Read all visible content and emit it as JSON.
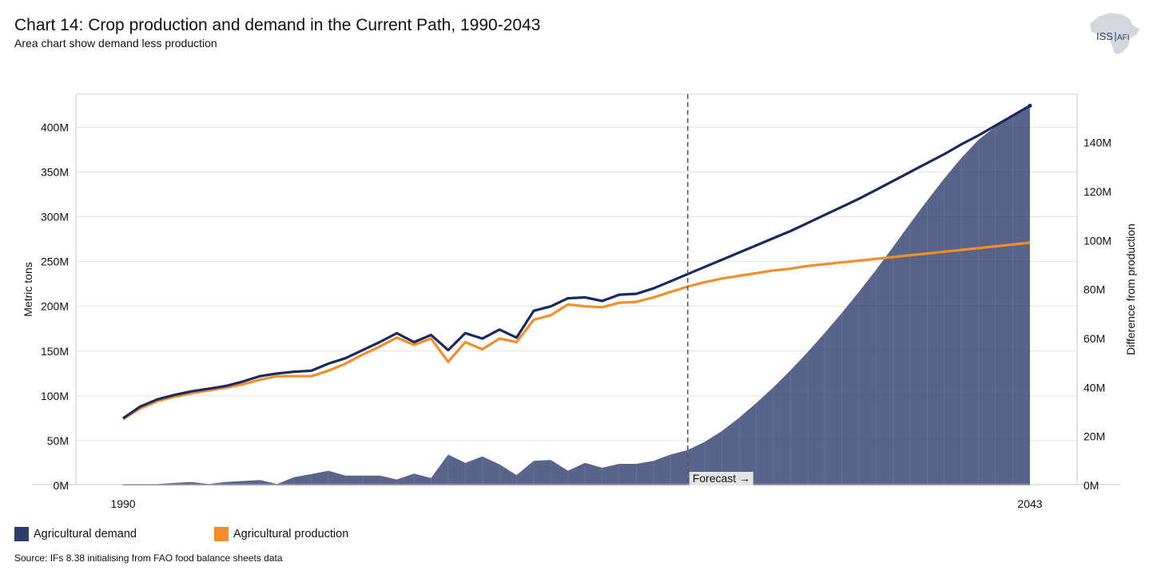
{
  "title": "Chart 14: Crop production and demand in the Current Path, 1990-2043",
  "subtitle": "Area chart show demand less production",
  "logo": {
    "text_main": "ISS",
    "text_sub": "AFI"
  },
  "legend": [
    {
      "label": "Agricultural demand",
      "color": "#2e3d6b"
    },
    {
      "label": "Agricultural production",
      "color": "#f28e2b"
    }
  ],
  "source": "Source: IFs 8.38 initialising from FAO food balance sheets data",
  "forecast_label": "Forecast →",
  "chart_data": {
    "type": "line+area",
    "title": "Chart 14: Crop production and demand in the Current Path, 1990-2043",
    "ylabel": "Metric tons",
    "y2label": "Difference from production",
    "ylim": [
      0,
      440000000
    ],
    "y2lim": [
      0,
      160000000
    ],
    "yticks": [
      0,
      50000000,
      100000000,
      150000000,
      200000000,
      250000000,
      300000000,
      350000000,
      400000000
    ],
    "ytick_labels": [
      "0M",
      "50M",
      "100M",
      "150M",
      "200M",
      "250M",
      "300M",
      "350M",
      "400M"
    ],
    "y2ticks": [
      0,
      20000000,
      40000000,
      60000000,
      80000000,
      100000000,
      120000000,
      140000000
    ],
    "y2tick_labels": [
      "0M",
      "20M",
      "40M",
      "60M",
      "80M",
      "100M",
      "120M",
      "140M"
    ],
    "xlim": [
      1990,
      2043
    ],
    "xtick_labels": [
      "1990",
      "2043"
    ],
    "forecast_start": 2023,
    "years": [
      1990,
      1991,
      1992,
      1993,
      1994,
      1995,
      1996,
      1997,
      1998,
      1999,
      2000,
      2001,
      2002,
      2003,
      2004,
      2005,
      2006,
      2007,
      2008,
      2009,
      2010,
      2011,
      2012,
      2013,
      2014,
      2015,
      2016,
      2017,
      2018,
      2019,
      2020,
      2021,
      2022,
      2023,
      2024,
      2025,
      2026,
      2027,
      2028,
      2029,
      2030,
      2031,
      2032,
      2033,
      2034,
      2035,
      2036,
      2037,
      2038,
      2039,
      2040,
      2041,
      2042,
      2043
    ],
    "series": [
      {
        "name": "Agricultural demand",
        "axis": "left",
        "style": "line",
        "color": "#1b2a5c",
        "values": [
          75,
          88,
          96,
          101,
          105,
          108,
          111,
          116,
          122,
          125,
          127,
          128,
          136,
          142,
          151,
          160,
          170,
          160,
          168,
          151,
          170,
          164,
          174,
          165,
          195,
          200,
          209,
          210,
          206,
          213,
          214,
          220,
          228,
          236,
          244,
          252,
          260,
          268,
          276,
          284,
          293,
          302,
          311,
          320,
          330,
          340,
          350,
          360,
          370,
          381,
          391,
          402,
          413,
          424
        ]
      },
      {
        "name": "Agricultural production",
        "axis": "left",
        "style": "line",
        "color": "#f28e2b",
        "values": [
          74,
          86,
          94,
          99,
          103,
          106,
          109,
          113,
          118,
          122,
          122,
          122,
          128,
          136,
          146,
          155,
          165,
          157,
          164,
          138,
          160,
          152,
          164,
          160,
          185,
          190,
          202,
          200,
          199,
          204,
          205,
          210,
          216,
          222,
          227,
          231,
          234,
          237,
          240,
          242,
          245,
          247,
          249,
          251,
          253,
          255,
          257,
          259,
          261,
          263,
          265,
          267,
          269,
          271
        ]
      },
      {
        "name": "Difference from production",
        "axis": "right",
        "style": "area",
        "color": "#2e3d6b",
        "values": [
          0.6,
          0.6,
          0.6,
          1.0,
          1.4,
          0.6,
          1.4,
          1.8,
          2.2,
          0.6,
          3.4,
          4.6,
          6.0,
          4.0,
          4.0,
          4.0,
          2.4,
          4.8,
          3.0,
          12.6,
          9.2,
          11.8,
          8.6,
          4.2,
          10.0,
          10.4,
          6.0,
          9.2,
          7.2,
          8.8,
          8.8,
          10.0,
          12.6,
          14.4,
          17.8,
          22.2,
          27.6,
          33.6,
          40.0,
          47.0,
          54.4,
          62.2,
          70.4,
          79.0,
          88.0,
          97.4,
          107.0,
          116.4,
          125.4,
          133.8,
          141.2,
          146.6,
          151.0,
          154.6
        ]
      }
    ],
    "value_units": "millions of metric tons"
  }
}
